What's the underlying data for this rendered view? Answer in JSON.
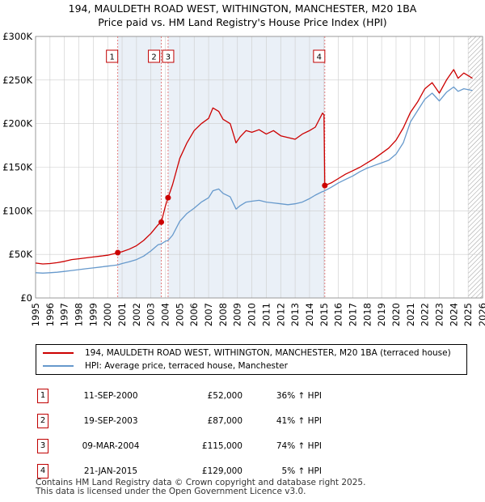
{
  "title_line1": "194, MAULDETH ROAD WEST, WITHINGTON, MANCHESTER, M20 1BA",
  "title_line2": "Price paid vs. HM Land Registry's House Price Index (HPI)",
  "colors": {
    "property": "#cc0000",
    "hpi": "#6699cc",
    "shade": "#dce6f2",
    "marker_line": "#e06060"
  },
  "legend": {
    "property": "194, MAULDETH ROAD WEST, WITHINGTON, MANCHESTER, M20 1BA (terraced house)",
    "hpi": "HPI: Average price, terraced house, Manchester"
  },
  "sales": [
    {
      "num": "1",
      "date": "11-SEP-2000",
      "price": "£52,000",
      "hpi": "36% ↑ HPI"
    },
    {
      "num": "2",
      "date": "19-SEP-2003",
      "price": "£87,000",
      "hpi": "41% ↑ HPI"
    },
    {
      "num": "3",
      "date": "09-MAR-2004",
      "price": "£115,000",
      "hpi": "74% ↑ HPI"
    },
    {
      "num": "4",
      "date": "21-JAN-2015",
      "price": "£129,000",
      "hpi": "5% ↑ HPI"
    }
  ],
  "footer_line1": "Contains HM Land Registry data © Crown copyright and database right 2025.",
  "footer_line2": "This data is licensed under the Open Government Licence v3.0.",
  "chart_data": {
    "type": "line",
    "title": "194, MAULDETH ROAD WEST, WITHINGTON, MANCHESTER, M20 1BA — Price paid vs. HM Land Registry's House Price Index (HPI)",
    "xlabel": "",
    "ylabel": "",
    "xlim": [
      1995,
      2026
    ],
    "ylim": [
      0,
      300000
    ],
    "y_ticks": [
      0,
      50000,
      100000,
      150000,
      200000,
      250000,
      300000
    ],
    "y_tick_labels": [
      "£0",
      "£50K",
      "£100K",
      "£150K",
      "£200K",
      "£250K",
      "£300K"
    ],
    "x_ticks": [
      1995,
      1996,
      1997,
      1998,
      1999,
      2000,
      2001,
      2002,
      2003,
      2004,
      2005,
      2006,
      2007,
      2008,
      2009,
      2010,
      2011,
      2012,
      2013,
      2014,
      2015,
      2016,
      2017,
      2018,
      2019,
      2020,
      2021,
      2022,
      2023,
      2024,
      2025,
      2026
    ],
    "x_tick_labels": [
      "1995",
      "1996",
      "1997",
      "1998",
      "1999",
      "2000",
      "2001",
      "2002",
      "2003",
      "2004",
      "2005",
      "2006",
      "2007",
      "2008",
      "2009",
      "2010",
      "2011",
      "2012",
      "2013",
      "2014",
      "2015",
      "2016",
      "2017",
      "2018",
      "2019",
      "2020",
      "2021",
      "2022",
      "2023",
      "2024",
      "2025",
      "2026"
    ],
    "grid": true,
    "shaded_ranges": [
      [
        2000.7,
        2003.72
      ],
      [
        2004.19,
        2015.06
      ]
    ],
    "forecast_start": 2025.0,
    "markers": [
      {
        "label": "1",
        "x": 2000.7,
        "y": 52000
      },
      {
        "label": "2",
        "x": 2003.72,
        "y": 87000
      },
      {
        "label": "3",
        "x": 2004.19,
        "y": 115000
      },
      {
        "label": "4",
        "x": 2015.06,
        "y": 129000
      }
    ],
    "series": [
      {
        "name": "194, MAULDETH ROAD WEST, WITHINGTON, MANCHESTER, M20 1BA (terraced house)",
        "x": [
          1995,
          1995.5,
          1996,
          1996.5,
          1997,
          1997.5,
          1998,
          1998.5,
          1999,
          1999.5,
          2000,
          2000.5,
          2000.7,
          2001,
          2001.5,
          2002,
          2002.5,
          2003,
          2003.5,
          2003.72,
          2004,
          2004.19,
          2004.5,
          2005,
          2005.5,
          2006,
          2006.5,
          2007,
          2007.3,
          2007.7,
          2008,
          2008.5,
          2008.9,
          2009.2,
          2009.6,
          2010,
          2010.5,
          2011,
          2011.5,
          2012,
          2012.5,
          2013,
          2013.5,
          2014,
          2014.4,
          2014.9,
          2015.0,
          2015.06,
          2015.5,
          2016,
          2016.5,
          2017,
          2017.5,
          2018,
          2018.5,
          2019,
          2019.5,
          2020,
          2020.5,
          2021,
          2021.5,
          2022,
          2022.5,
          2023,
          2023.5,
          2024,
          2024.3,
          2024.7,
          2025,
          2025.3
        ],
        "values": [
          40000,
          39000,
          39500,
          40500,
          42000,
          44000,
          45000,
          46000,
          47000,
          48000,
          49000,
          51000,
          52000,
          53000,
          56000,
          60000,
          66000,
          74000,
          84000,
          87000,
          105000,
          115000,
          130000,
          160000,
          178000,
          192000,
          200000,
          206000,
          218000,
          214000,
          205000,
          200000,
          178000,
          185000,
          192000,
          190000,
          193000,
          188000,
          192000,
          186000,
          184000,
          182000,
          188000,
          192000,
          196000,
          212000,
          210000,
          129000,
          132000,
          137000,
          142000,
          146000,
          150000,
          155000,
          160000,
          166000,
          172000,
          181000,
          195000,
          213000,
          225000,
          240000,
          247000,
          235000,
          250000,
          262000,
          252000,
          258000,
          255000,
          252000
        ]
      },
      {
        "name": "HPI: Average price, terraced house, Manchester",
        "x": [
          1995,
          1995.5,
          1996,
          1996.5,
          1997,
          1997.5,
          1998,
          1998.5,
          1999,
          1999.5,
          2000,
          2000.5,
          2000.7,
          2001,
          2001.5,
          2002,
          2002.5,
          2003,
          2003.5,
          2003.72,
          2004,
          2004.19,
          2004.5,
          2005,
          2005.5,
          2006,
          2006.5,
          2007,
          2007.3,
          2007.7,
          2008,
          2008.5,
          2008.9,
          2009.2,
          2009.6,
          2010,
          2010.5,
          2011,
          2011.5,
          2012,
          2012.5,
          2013,
          2013.5,
          2014,
          2014.4,
          2014.9,
          2015.0,
          2015.06,
          2015.5,
          2016,
          2016.5,
          2017,
          2017.5,
          2018,
          2018.5,
          2019,
          2019.5,
          2020,
          2020.5,
          2021,
          2021.5,
          2022,
          2022.5,
          2023,
          2023.5,
          2024,
          2024.3,
          2024.7,
          2025,
          2025.3
        ],
        "values": [
          29000,
          28500,
          29000,
          29500,
          30500,
          31500,
          32500,
          33500,
          34500,
          35500,
          36500,
          37500,
          38000,
          39500,
          41500,
          44000,
          48000,
          54000,
          61000,
          62000,
          65000,
          66000,
          72000,
          88000,
          97000,
          103000,
          110000,
          115000,
          123000,
          125000,
          120000,
          116000,
          102000,
          106000,
          110000,
          111000,
          112000,
          110000,
          109000,
          108000,
          107000,
          108000,
          110000,
          114000,
          118000,
          122000,
          122500,
          123000,
          127000,
          132000,
          136000,
          140000,
          145000,
          149000,
          152000,
          155000,
          158000,
          165000,
          178000,
          202000,
          215000,
          228000,
          235000,
          226000,
          236000,
          242000,
          237000,
          240000,
          239000,
          238000
        ]
      }
    ]
  }
}
